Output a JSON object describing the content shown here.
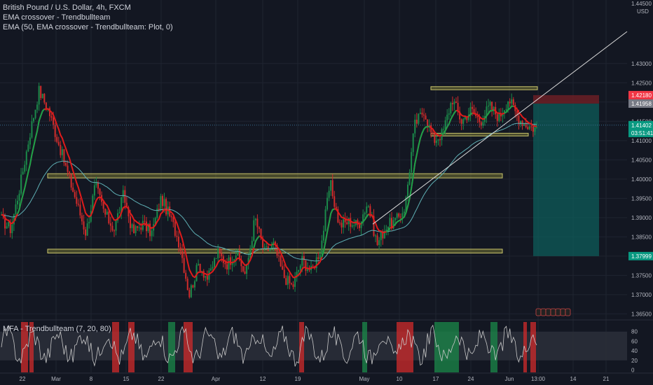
{
  "legend": {
    "symbol": "British Pound / U.S. Dollar, 4h, FXCM",
    "ema_label": "EMA crossover - Trendbullteam",
    "ema_plot": "EMA (50, EMA crossover - Trendbullteam: Plot, 0)",
    "mfa_label": "MFA - Trendbullteam (7, 20, 80)"
  },
  "colors": {
    "background": "#131722",
    "up": "#1b8a4a",
    "down": "#d12b2b",
    "ema_fast": "#e01b1b",
    "ema_fast2": "#18a34a",
    "ema_slow": "#5fb0b5",
    "zone": "#8a8a3a",
    "stop": "#6b1f24",
    "target": "#0e5c5a",
    "trendline": "#d8d8d8"
  },
  "chart_data": [
    {
      "type": "candlestick",
      "title": "British Pound / U.S. Dollar, 4h, FXCM",
      "ylabel": "USD",
      "ylim": [
        1.3638,
        1.4465
      ],
      "y_ticks": [
        1.365,
        1.37,
        1.375,
        1.38,
        1.385,
        1.39,
        1.395,
        1.4,
        1.405,
        1.41,
        1.415,
        1.42,
        1.425,
        1.43
      ],
      "y_tick_labels": [
        "1.36500",
        "1.37000",
        "1.37500",
        "1.38000",
        "1.38500",
        "1.39000",
        "1.39500",
        "1.40000",
        "1.40500",
        "1.41000",
        "1.41500",
        "1.42000",
        "1.42500",
        "1.43000"
      ],
      "top_label": "1.44500",
      "x_tick_labels": [
        "22",
        "Mar",
        "8",
        "15",
        "22",
        "Apr",
        "12",
        "19",
        "May",
        "10",
        "17",
        "24",
        "Jun",
        "13:00",
        "14",
        "21"
      ],
      "price_tags": [
        {
          "label": "1.42180",
          "value": 1.4218,
          "color": "#f23645"
        },
        {
          "label": "1.41958",
          "value": 1.4196,
          "color": "#787b86"
        },
        {
          "label": "1.41402",
          "value": 1.414,
          "color": "#089981"
        },
        {
          "label": "03:51:41",
          "value": 1.4127,
          "color": "#089981"
        },
        {
          "label": "1.37999",
          "value": 1.38,
          "color": "#089981"
        }
      ],
      "zones": [
        {
          "from": 1.4003,
          "to": 1.4014
        },
        {
          "from": 1.3808,
          "to": 1.3818
        },
        {
          "from": 1.4232,
          "to": 1.424
        },
        {
          "from": 1.4112,
          "to": 1.4119
        }
      ],
      "position": {
        "entry": 1.4196,
        "stop": 1.4218,
        "target": 1.38
      },
      "trendline": {
        "from": 1.3883,
        "to": 1.4383
      },
      "ohlc_anchors": [
        1.3895,
        1.387,
        1.3985,
        1.4115,
        1.423,
        1.418,
        1.41,
        1.402,
        1.394,
        1.386,
        1.3985,
        1.391,
        1.387,
        1.396,
        1.386,
        1.3885,
        1.386,
        1.395,
        1.39,
        1.383,
        1.37,
        1.378,
        1.374,
        1.381,
        1.378,
        1.381,
        1.375,
        1.39,
        1.381,
        1.383,
        1.375,
        1.372,
        1.379,
        1.376,
        1.382,
        1.399,
        1.388,
        1.389,
        1.388,
        1.394,
        1.383,
        1.388,
        1.389,
        1.393,
        1.414,
        1.418,
        1.41,
        1.412,
        1.421,
        1.415,
        1.418,
        1.415,
        1.419,
        1.416,
        1.421,
        1.416,
        1.414,
        1.413
      ],
      "candle_count": 300,
      "series": [
        {
          "name": "EMA crossover - Trendbullteam",
          "type": "line"
        },
        {
          "name": "EMA (50, EMA crossover - Trendbullteam: Plot, 0)",
          "type": "line"
        }
      ]
    },
    {
      "type": "line",
      "title": "MFA - Trendbullteam (7, 20, 80)",
      "ylim": [
        -5,
        100
      ],
      "y_ticks": [
        0,
        20,
        40,
        60,
        80
      ],
      "band": [
        20,
        80
      ],
      "series": [
        {
          "name": "MFA - Trendbullteam (7, 20, 80)"
        }
      ]
    }
  ]
}
